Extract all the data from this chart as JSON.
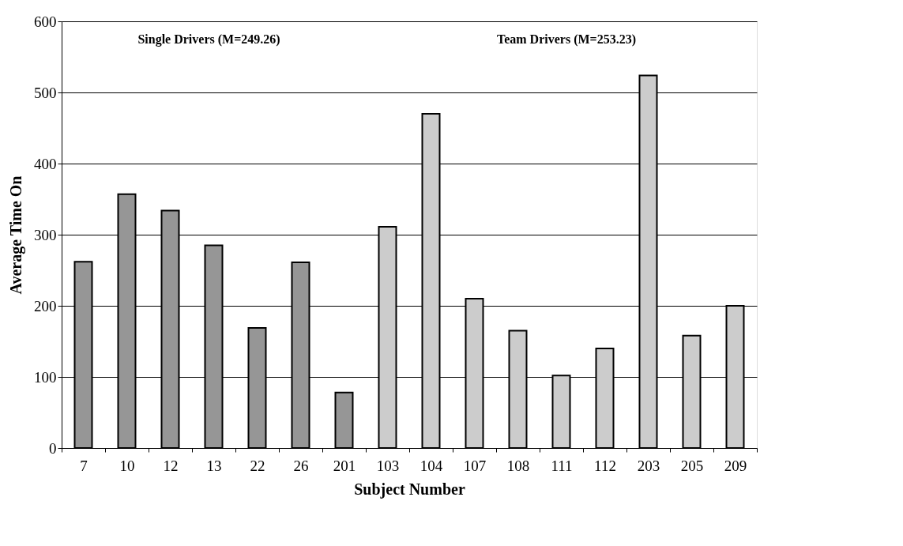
{
  "chart_data": {
    "type": "bar",
    "xlabel": "Subject Number",
    "ylabel": "Average Time On",
    "categories": [
      "7",
      "10",
      "12",
      "13",
      "22",
      "26",
      "201",
      "103",
      "104",
      "107",
      "108",
      "111",
      "112",
      "203",
      "205",
      "209"
    ],
    "values": [
      262,
      357,
      334,
      285,
      169,
      261,
      78,
      311,
      470,
      210,
      165,
      102,
      140,
      524,
      158,
      200
    ],
    "colors": [
      "#969696",
      "#969696",
      "#969696",
      "#969696",
      "#969696",
      "#969696",
      "#969696",
      "#cccccc",
      "#cccccc",
      "#cccccc",
      "#cccccc",
      "#cccccc",
      "#cccccc",
      "#cccccc",
      "#cccccc",
      "#cccccc"
    ],
    "annotations": [
      "Single Drivers (M=249.26)",
      "Team Drivers (M=253.23)"
    ],
    "ylim": [
      0,
      600
    ],
    "yticks": [
      0,
      100,
      200,
      300,
      400,
      500,
      600
    ],
    "grid": "y"
  }
}
